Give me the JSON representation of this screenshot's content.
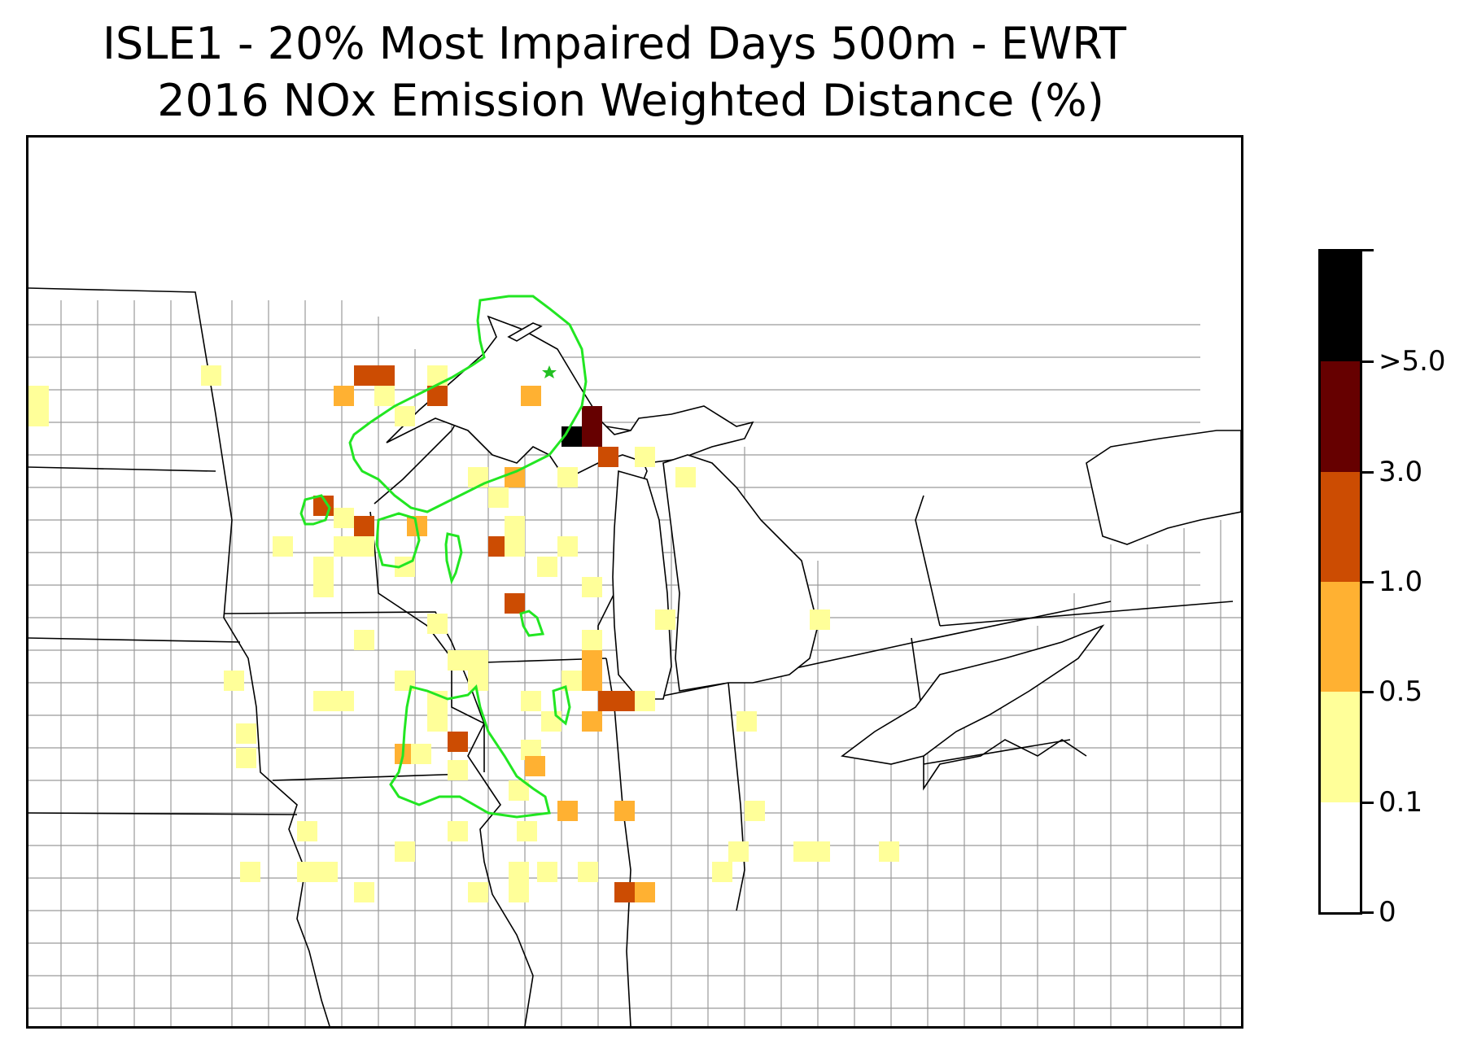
{
  "title": {
    "line1": "ISLE1 - 20% Most Impaired Days 500m - EWRT",
    "line2": "2016 NOx Emission Weighted Distance (%)"
  },
  "colorbar": {
    "bins": [
      {
        "label": "0",
        "color": "#ffffff"
      },
      {
        "label": "0.1",
        "color": "#ffff99"
      },
      {
        "label": "0.5",
        "color": "#ffb132"
      },
      {
        "label": "1.0",
        "color": "#cc4c02"
      },
      {
        "label": "3.0",
        "color": "#660000"
      },
      {
        "label": ">5.0",
        "color": "#000000"
      }
    ]
  },
  "colors": {
    "state_border": "#000000",
    "county_border": "#9a9a9a",
    "contour": "#22e622",
    "site_marker": "#22c022"
  },
  "icons": {
    "site_marker": "star-icon"
  }
}
